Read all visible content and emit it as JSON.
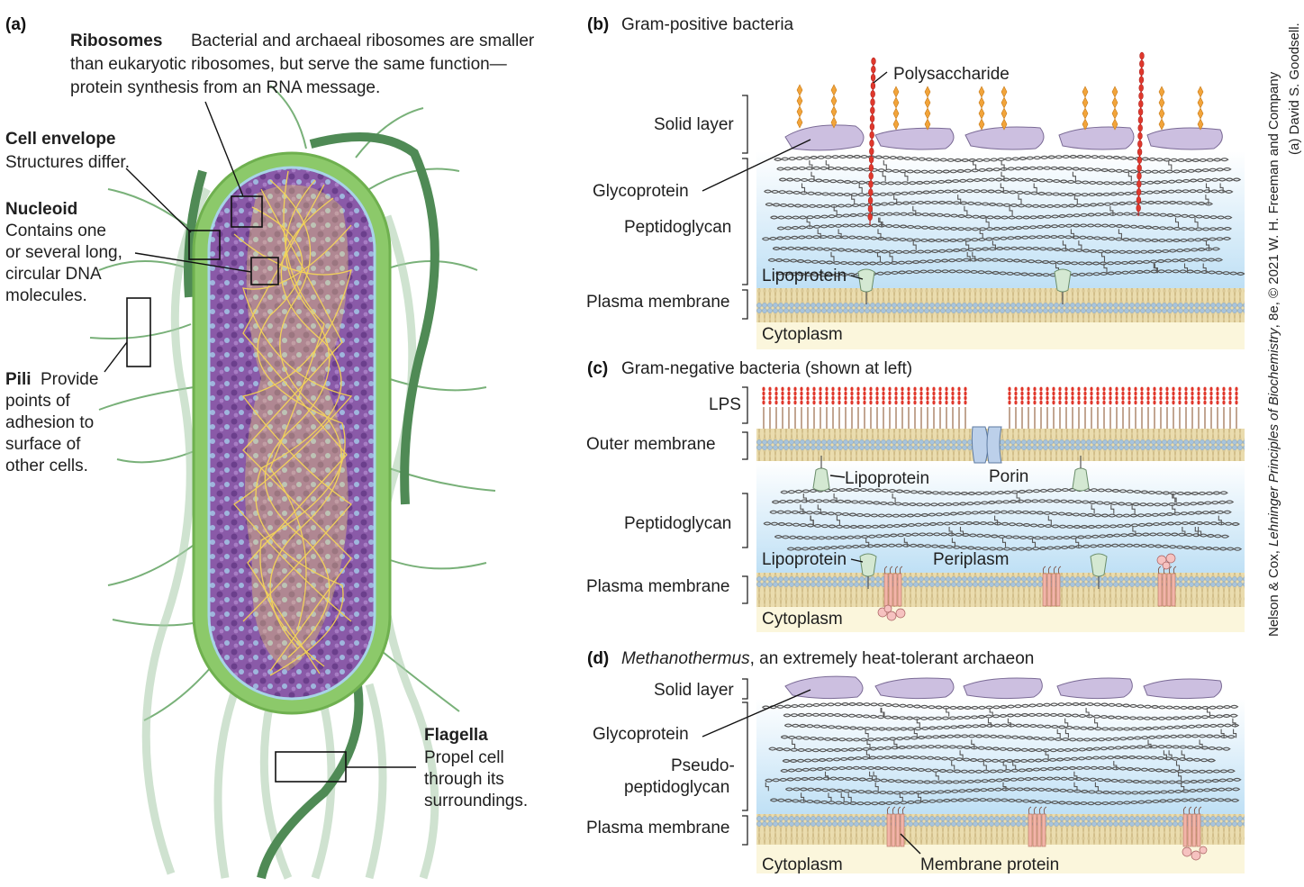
{
  "panel_a": {
    "letter": "(a)",
    "ribosomes": {
      "title": "Ribosomes",
      "lines": [
        "Bacterial and archaeal ribosomes are smaller",
        "than eukaryotic ribosomes, but serve the same function—",
        "protein synthesis from an RNA message."
      ]
    },
    "cell_envelope": {
      "title": "Cell envelope",
      "lines": [
        "Structures differ."
      ]
    },
    "nucleoid": {
      "title": "Nucleoid",
      "lines": [
        "Contains one",
        "or several long,",
        "circular DNA",
        "molecules."
      ]
    },
    "pili": {
      "title": "Pili",
      "first_line": "Provide",
      "lines": [
        "points of",
        "adhesion to",
        "surface of",
        "other cells."
      ]
    },
    "flagella": {
      "title": "Flagella",
      "lines": [
        "Propel cell",
        "through its",
        "surroundings."
      ]
    }
  },
  "panel_b": {
    "letter": "(b)",
    "title": "Gram-positive bacteria",
    "labels": {
      "polysaccharide": "Polysaccharide",
      "solid_layer": "Solid layer",
      "glycoprotein": "Glycoprotein",
      "peptidoglycan": "Peptidoglycan",
      "lipoprotein": "Lipoprotein",
      "plasma_membrane": "Plasma membrane",
      "cytoplasm": "Cytoplasm"
    }
  },
  "panel_c": {
    "letter": "(c)",
    "title": "Gram-negative bacteria (shown at left)",
    "labels": {
      "lps": "LPS",
      "outer_membrane": "Outer membrane",
      "lipoprotein_top": "Lipoprotein",
      "porin": "Porin",
      "peptidoglycan": "Peptidoglycan",
      "lipoprotein": "Lipoprotein",
      "periplasm": "Periplasm",
      "plasma_membrane": "Plasma membrane",
      "cytoplasm": "Cytoplasm"
    }
  },
  "panel_d": {
    "letter": "(d)",
    "title_italic": "Methanothermus",
    "title_rest": ", an extremely heat-tolerant archaeon",
    "labels": {
      "solid_layer": "Solid layer",
      "glycoprotein": "Glycoprotein",
      "pseudo_1": "Pseudo-",
      "pseudo_2": "peptidoglycan",
      "plasma_membrane": "Plasma membrane",
      "cytoplasm": "Cytoplasm",
      "membrane_protein": "Membrane protein"
    }
  },
  "credit": {
    "line1_pre": "Nelson & Cox, ",
    "line1_ital": "Lehninger Principles of Biochemistry",
    "line1_post": ", 8e, © 2021 W. H. Freeman and Company",
    "line2": "(a) David S. Goodsell."
  },
  "colors": {
    "cell_interior": "#8a5aa8",
    "nucleoid": "#f2d24a",
    "envelope": "#8cc96a",
    "pili": "#5e9a5e",
    "membrane": "#e9d9a8",
    "lipid_head": "#a9c4dc",
    "periplasm": "#cde6f6",
    "cytoplasm": "#fbf6dc",
    "glycoprotein": "#cbbddc",
    "polysaccharide": "#d8352a",
    "sugar": "#f0a22e",
    "membrane_protein": "#f0b2a6"
  }
}
